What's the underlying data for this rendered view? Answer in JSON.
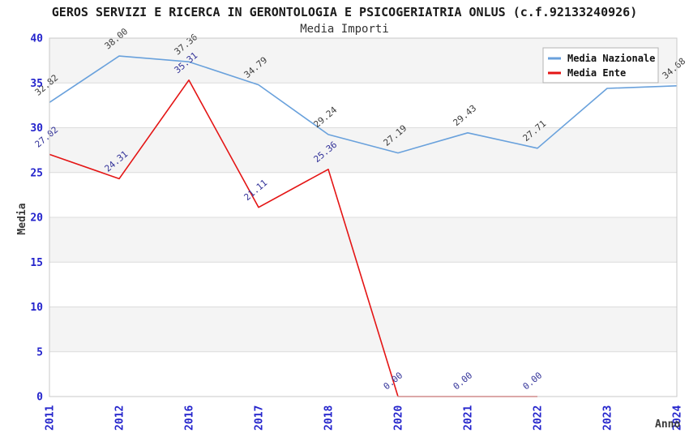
{
  "chart_data": {
    "type": "line",
    "title": "GEROS SERVIZI E RICERCA IN GERONTOLOGIA E PSICOGERIATRIA ONLUS (c.f.92133240926)",
    "subtitle": "Media Importi",
    "xlabel": "Anno",
    "ylabel": "Media",
    "ylim": [
      0,
      40
    ],
    "y_ticks": [
      0,
      5,
      10,
      15,
      20,
      25,
      30,
      35,
      40
    ],
    "categories": [
      "2011",
      "2012",
      "2016",
      "2017",
      "2018",
      "2020",
      "2021",
      "2022",
      "2023",
      "2024"
    ],
    "series": [
      {
        "name": "Media Nazionale",
        "color": "#69a1dc",
        "label_color": "#3d3d3d",
        "values": [
          32.82,
          38.0,
          37.36,
          34.79,
          29.24,
          27.19,
          29.43,
          27.71,
          34.39,
          34.68
        ]
      },
      {
        "name": "Media Ente",
        "color": "#e41414",
        "label_color": "#333399",
        "values": [
          27.02,
          24.31,
          35.31,
          21.11,
          25.36,
          0.0,
          0.0,
          0.0,
          null,
          null
        ]
      }
    ],
    "legend_position": "top-right",
    "grid": true,
    "colors": {
      "band_gray": "#f4f4f4",
      "band_white": "#ffffff",
      "gridline": "#dcdcdc",
      "plot_border": "#c8c8c8",
      "tick_label": "#2424cc",
      "legend_border": "#b3b3b3"
    }
  }
}
